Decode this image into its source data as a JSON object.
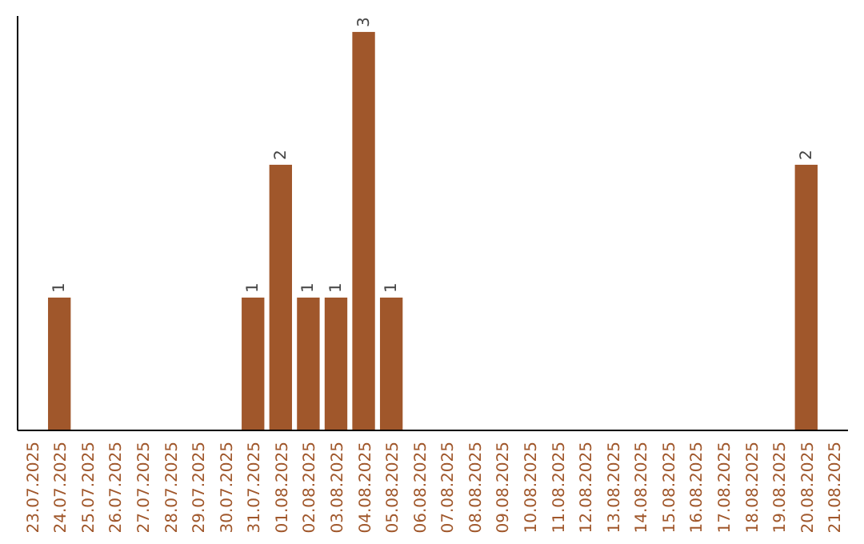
{
  "chart_data": {
    "type": "bar",
    "categories": [
      "23.07.2025",
      "24.07.2025",
      "25.07.2025",
      "26.07.2025",
      "27.07.2025",
      "28.07.2025",
      "29.07.2025",
      "30.07.2025",
      "31.07.2025",
      "01.08.2025",
      "02.08.2025",
      "03.08.2025",
      "04.08.2025",
      "05.08.2025",
      "06.08.2025",
      "07.08.2025",
      "08.08.2025",
      "09.08.2025",
      "10.08.2025",
      "11.08.2025",
      "12.08.2025",
      "13.08.2025",
      "14.08.2025",
      "15.08.2025",
      "16.08.2025",
      "17.08.2025",
      "18.08.2025",
      "19.08.2025",
      "20.08.2025",
      "21.08.2025"
    ],
    "values": [
      0,
      1,
      0,
      0,
      0,
      0,
      0,
      0,
      1,
      2,
      1,
      1,
      3,
      1,
      0,
      0,
      0,
      0,
      0,
      0,
      0,
      0,
      0,
      0,
      0,
      0,
      0,
      0,
      2,
      0
    ],
    "value_labels": [
      null,
      "1",
      null,
      null,
      null,
      null,
      null,
      null,
      "1",
      "2",
      "1",
      "1",
      "3",
      "1",
      null,
      null,
      null,
      null,
      null,
      null,
      null,
      null,
      null,
      null,
      null,
      null,
      null,
      null,
      "2",
      null
    ],
    "color": "#a0572b",
    "grid": false
  }
}
